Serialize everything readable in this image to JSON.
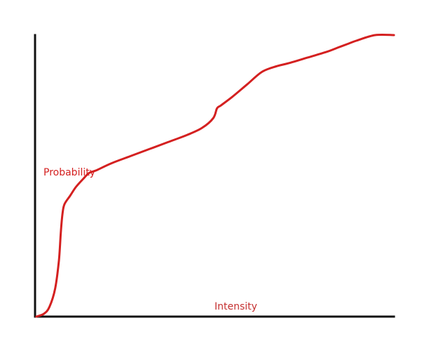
{
  "chart_data": {
    "type": "line",
    "title": "",
    "xlabel": "Intensity",
    "ylabel": "",
    "xlim": [
      0,
      1
    ],
    "ylim": [
      0,
      1
    ],
    "grid": false,
    "legend": "none",
    "series": [
      {
        "name": "Probability",
        "color": "#d42020",
        "x": [
          0.05,
          0.07,
          0.085,
          0.1,
          0.11,
          0.115,
          0.12,
          0.125,
          0.14,
          0.155,
          0.175,
          0.19,
          0.21,
          0.25,
          0.3,
          0.35,
          0.4,
          0.45,
          0.49,
          0.52,
          0.53,
          0.54,
          0.57,
          0.61,
          0.65,
          0.69,
          0.72,
          0.77,
          0.82,
          0.85,
          0.88,
          0.9,
          0.95,
          1.0
        ],
        "y": [
          0.0,
          0.01,
          0.035,
          0.1,
          0.2,
          0.3,
          0.37,
          0.4,
          0.43,
          0.46,
          0.49,
          0.51,
          0.52,
          0.545,
          0.57,
          0.595,
          0.62,
          0.645,
          0.67,
          0.705,
          0.74,
          0.75,
          0.78,
          0.825,
          0.87,
          0.89,
          0.9,
          0.92,
          0.94,
          0.955,
          0.97,
          0.98,
          1.0,
          1.0
        ]
      }
    ]
  }
}
